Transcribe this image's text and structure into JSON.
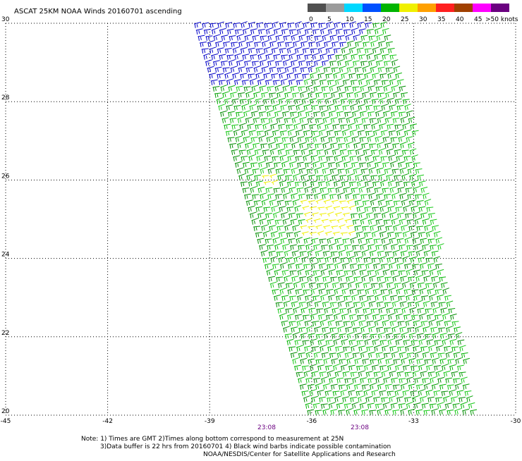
{
  "title": "ASCAT 25KM NOAA Winds 20160701 ascending",
  "legend": {
    "labels": [
      "0",
      "5",
      "10",
      "15",
      "20",
      "25",
      "30",
      "35",
      "40",
      "45",
      ">50 knots"
    ],
    "colors": [
      "#505050",
      "#9b9b9b",
      "#00d8ff",
      "#0050ff",
      "#00b400",
      "#f0f000",
      "#ffa000",
      "#ff2020",
      "#a04000",
      "#ff00ff",
      "#6a0080"
    ]
  },
  "x_axis": {
    "ticks": [
      -45,
      -42,
      -39,
      -36,
      -33,
      -30
    ],
    "labels": [
      "-45",
      "-42",
      "-39",
      "-36",
      "-33",
      "-30"
    ]
  },
  "y_axis": {
    "ticks": [
      20,
      22,
      24,
      26,
      28,
      30
    ],
    "labels": [
      "20",
      "22",
      "24",
      "26",
      "28",
      "30"
    ]
  },
  "swath_times": [
    "23:08",
    "23:08"
  ],
  "notes": [
    "Note: 1) Times are GMT 2)Times along bottom correspond to measurement at 25N",
    "3)Data buffer is 22 hrs from 20160701 4) Black wind barbs indicate possible contamination",
    "NOAA/NESDIS/Center for Satellite Applications and Research"
  ],
  "colors": {
    "calm": "#f0f000",
    "light": "#00b400",
    "moderate": "#0000c8",
    "axis_time": "#6a0080"
  }
}
